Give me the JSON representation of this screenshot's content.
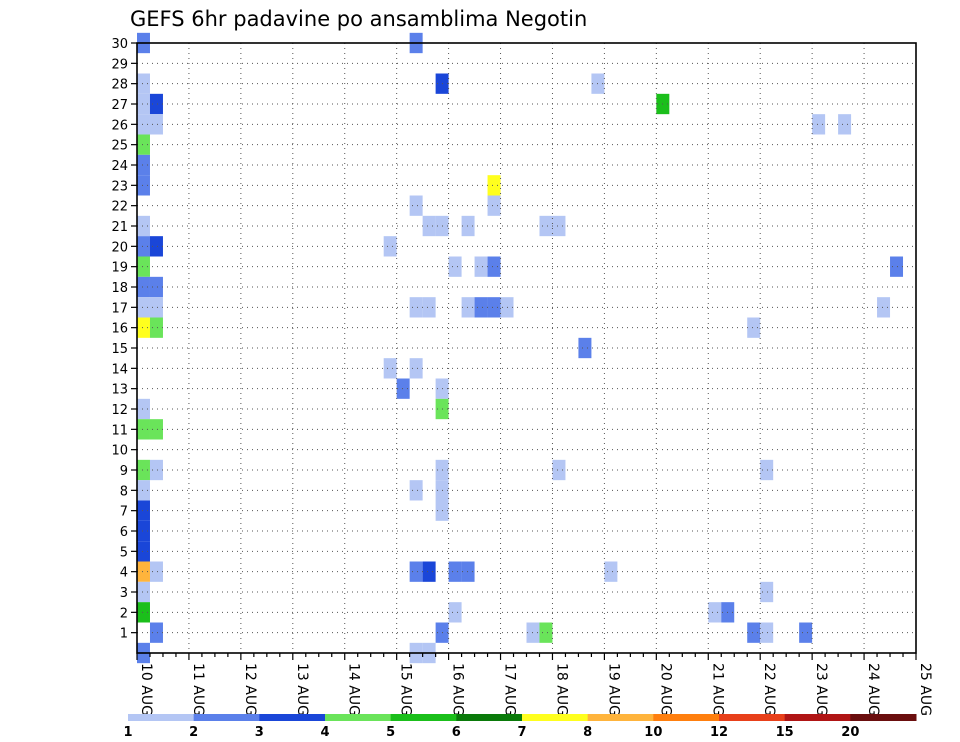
{
  "chart_data": {
    "type": "heatmap",
    "title": "GEFS 6hr padavine po ansamblima Negotin",
    "xlabel": "",
    "ylabel": "",
    "x_ticks": [
      "10 AUG",
      "11 AUG",
      "12 AUG",
      "13 AUG",
      "14 AUG",
      "15 AUG",
      "16 AUG",
      "17 AUG",
      "18 AUG",
      "19 AUG",
      "20 AUG",
      "21 AUG",
      "22 AUG",
      "23 AUG",
      "24 AUG",
      "25 AUG"
    ],
    "x_unit": "6-hour step from 10 AUG 00Z",
    "xlim": [
      0,
      60
    ],
    "y_ticks": [
      1,
      2,
      3,
      4,
      5,
      6,
      7,
      8,
      9,
      10,
      11,
      12,
      13,
      14,
      15,
      16,
      17,
      18,
      19,
      20,
      21,
      22,
      23,
      24,
      25,
      26,
      27,
      28,
      29,
      30
    ],
    "ylim": [
      0,
      30
    ],
    "grid": true,
    "legend": {
      "placement": "bottom",
      "labels": [
        "1",
        "2",
        "3",
        "4",
        "5",
        "6",
        "7",
        "8",
        "10",
        "12",
        "15",
        "20"
      ],
      "colors": [
        "#b4c6f4",
        "#5b80ea",
        "#1a46d8",
        "#6ae45a",
        "#1bbf1b",
        "#0a7a0a",
        "#ffff1e",
        "#ffb43c",
        "#ff7f0e",
        "#e8401a",
        "#b01515",
        "#6a0e0e"
      ]
    },
    "cells": [
      {
        "x": 0,
        "y": 30,
        "c": 1
      },
      {
        "x": 21,
        "y": 30,
        "c": 1
      },
      {
        "x": 0,
        "y": 28,
        "c": 0
      },
      {
        "x": 23,
        "y": 28,
        "c": 2
      },
      {
        "x": 35,
        "y": 28,
        "c": 0
      },
      {
        "x": 0,
        "y": 27,
        "c": 0
      },
      {
        "x": 1,
        "y": 27,
        "c": 2
      },
      {
        "x": 40,
        "y": 27,
        "c": 4
      },
      {
        "x": 0,
        "y": 26,
        "c": 0
      },
      {
        "x": 1,
        "y": 26,
        "c": 0
      },
      {
        "x": 52,
        "y": 26,
        "c": 0
      },
      {
        "x": 54,
        "y": 26,
        "c": 0
      },
      {
        "x": 0,
        "y": 25,
        "c": 3
      },
      {
        "x": 0,
        "y": 24,
        "c": 1
      },
      {
        "x": 0,
        "y": 23,
        "c": 1
      },
      {
        "x": 27,
        "y": 23,
        "c": 6
      },
      {
        "x": 21,
        "y": 22,
        "c": 0
      },
      {
        "x": 27,
        "y": 22,
        "c": 0
      },
      {
        "x": 0,
        "y": 21,
        "c": 0
      },
      {
        "x": 22,
        "y": 21,
        "c": 0
      },
      {
        "x": 23,
        "y": 21,
        "c": 0
      },
      {
        "x": 25,
        "y": 21,
        "c": 0
      },
      {
        "x": 31,
        "y": 21,
        "c": 0
      },
      {
        "x": 32,
        "y": 21,
        "c": 0
      },
      {
        "x": 0,
        "y": 20,
        "c": 1
      },
      {
        "x": 1,
        "y": 20,
        "c": 2
      },
      {
        "x": 19,
        "y": 20,
        "c": 0
      },
      {
        "x": 0,
        "y": 19,
        "c": 3
      },
      {
        "x": 24,
        "y": 19,
        "c": 0
      },
      {
        "x": 26,
        "y": 19,
        "c": 0
      },
      {
        "x": 27,
        "y": 19,
        "c": 1
      },
      {
        "x": 58,
        "y": 19,
        "c": 1
      },
      {
        "x": 0,
        "y": 18,
        "c": 1
      },
      {
        "x": 1,
        "y": 18,
        "c": 1
      },
      {
        "x": 0,
        "y": 17,
        "c": 0
      },
      {
        "x": 1,
        "y": 17,
        "c": 0
      },
      {
        "x": 21,
        "y": 17,
        "c": 0
      },
      {
        "x": 22,
        "y": 17,
        "c": 0
      },
      {
        "x": 25,
        "y": 17,
        "c": 0
      },
      {
        "x": 26,
        "y": 17,
        "c": 1
      },
      {
        "x": 27,
        "y": 17,
        "c": 1
      },
      {
        "x": 28,
        "y": 17,
        "c": 0
      },
      {
        "x": 57,
        "y": 17,
        "c": 0
      },
      {
        "x": 0,
        "y": 16,
        "c": 6
      },
      {
        "x": 1,
        "y": 16,
        "c": 3
      },
      {
        "x": 47,
        "y": 16,
        "c": 0
      },
      {
        "x": 34,
        "y": 15,
        "c": 1
      },
      {
        "x": 19,
        "y": 14,
        "c": 0
      },
      {
        "x": 21,
        "y": 14,
        "c": 0
      },
      {
        "x": 20,
        "y": 13,
        "c": 1
      },
      {
        "x": 23,
        "y": 13,
        "c": 0
      },
      {
        "x": 0,
        "y": 12,
        "c": 0
      },
      {
        "x": 23,
        "y": 12,
        "c": 3
      },
      {
        "x": 0,
        "y": 11,
        "c": 3
      },
      {
        "x": 1,
        "y": 11,
        "c": 3
      },
      {
        "x": 0,
        "y": 9,
        "c": 3
      },
      {
        "x": 1,
        "y": 9,
        "c": 0
      },
      {
        "x": 23,
        "y": 9,
        "c": 0
      },
      {
        "x": 32,
        "y": 9,
        "c": 0
      },
      {
        "x": 48,
        "y": 9,
        "c": 0
      },
      {
        "x": 0,
        "y": 8,
        "c": 0
      },
      {
        "x": 21,
        "y": 8,
        "c": 0
      },
      {
        "x": 23,
        "y": 8,
        "c": 0
      },
      {
        "x": 0,
        "y": 7,
        "c": 2
      },
      {
        "x": 23,
        "y": 7,
        "c": 0
      },
      {
        "x": 0,
        "y": 6,
        "c": 2
      },
      {
        "x": 0,
        "y": 5,
        "c": 2
      },
      {
        "x": 0,
        "y": 4,
        "c": 7
      },
      {
        "x": 1,
        "y": 4,
        "c": 0
      },
      {
        "x": 21,
        "y": 4,
        "c": 1
      },
      {
        "x": 22,
        "y": 4,
        "c": 2
      },
      {
        "x": 24,
        "y": 4,
        "c": 1
      },
      {
        "x": 25,
        "y": 4,
        "c": 1
      },
      {
        "x": 36,
        "y": 4,
        "c": 0
      },
      {
        "x": 0,
        "y": 3,
        "c": 0
      },
      {
        "x": 48,
        "y": 3,
        "c": 0
      },
      {
        "x": 0,
        "y": 2,
        "c": 4
      },
      {
        "x": 24,
        "y": 2,
        "c": 0
      },
      {
        "x": 44,
        "y": 2,
        "c": 0
      },
      {
        "x": 45,
        "y": 2,
        "c": 1
      },
      {
        "x": 1,
        "y": 1,
        "c": 1
      },
      {
        "x": 23,
        "y": 1,
        "c": 1
      },
      {
        "x": 30,
        "y": 1,
        "c": 0
      },
      {
        "x": 31,
        "y": 1,
        "c": 3
      },
      {
        "x": 47,
        "y": 1,
        "c": 1
      },
      {
        "x": 48,
        "y": 1,
        "c": 0
      },
      {
        "x": 51,
        "y": 1,
        "c": 1
      },
      {
        "x": 0,
        "y": 0,
        "c": 1
      },
      {
        "x": 21,
        "y": 0,
        "c": 0
      },
      {
        "x": 22,
        "y": 0,
        "c": 0
      }
    ]
  }
}
